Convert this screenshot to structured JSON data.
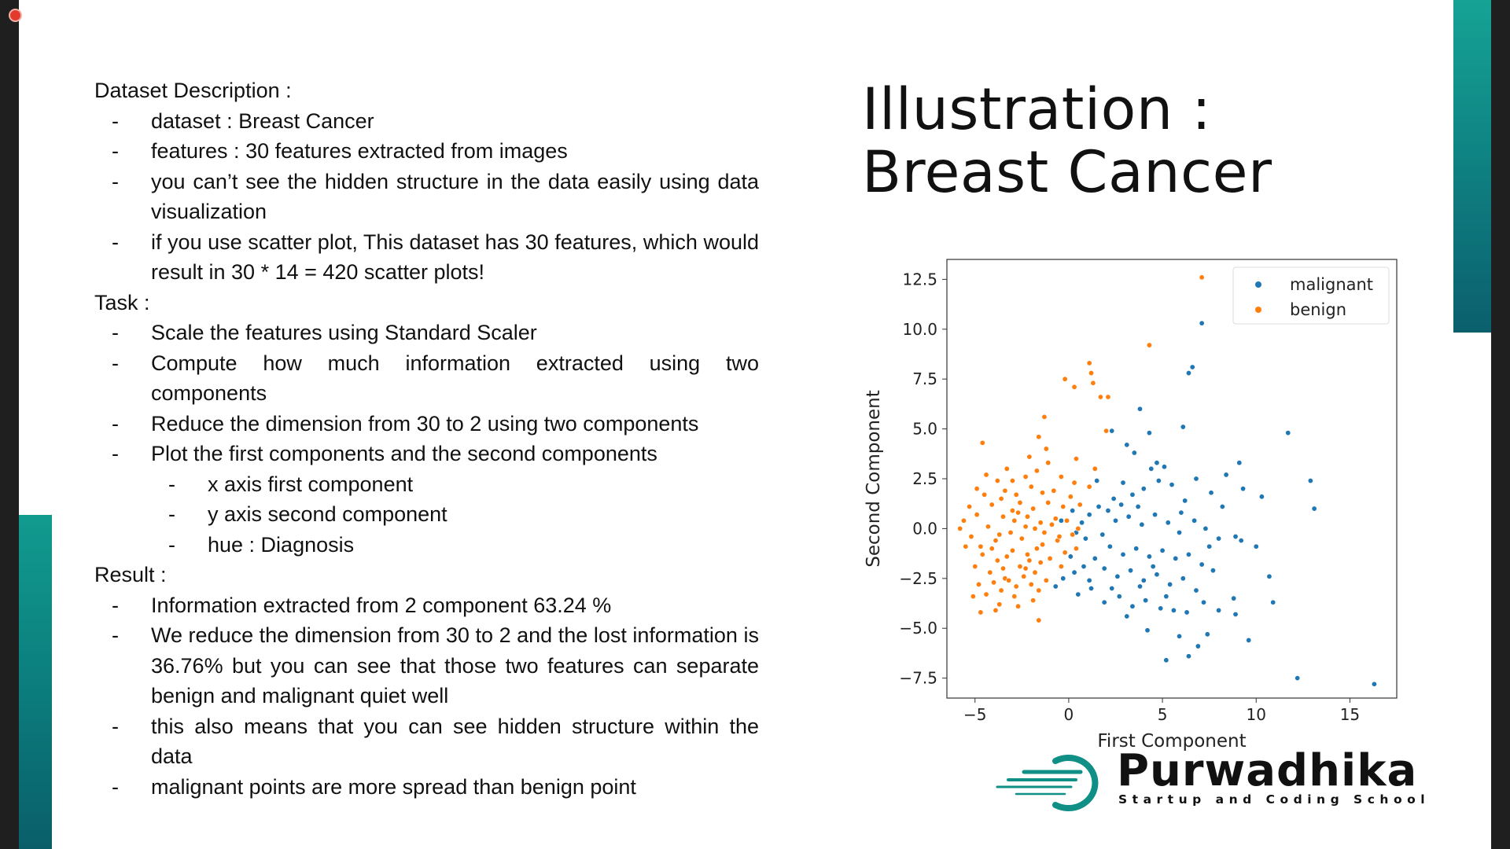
{
  "description": {
    "heading": "Dataset Description :",
    "items": [
      "dataset : Breast Cancer",
      "features : 30 features extracted from images",
      "you can’t see the hidden structure in the data easily using data visualization",
      "if you use scatter plot,  This dataset has 30 features, which would result in 30 * 14 = 420 scatter plots!"
    ]
  },
  "task": {
    "heading": "Task :",
    "items": [
      "Scale the features using Standard Scaler",
      "Compute how much information extracted using two components",
      "Reduce the dimension from 30 to 2 using two components",
      "Plot the first components and the second components"
    ],
    "subitems": [
      "x axis first component",
      "y axis second component",
      "hue : Diagnosis"
    ]
  },
  "result": {
    "heading": "Result :",
    "items": [
      "Information extracted from 2 component 63.24 %",
      "We reduce the dimension from 30 to 2 and the lost information is 36.76% but you can see that those two features can separate benign and malignant quiet well",
      "this also means that you can see hidden structure within the data",
      "malignant points are more spread than benign point"
    ]
  },
  "dash_symbol": "-",
  "title": {
    "line1": "Illustration :",
    "line2": "Breast Cancer"
  },
  "brand": {
    "name": "Purwadhika",
    "tagline": "Startup and Coding School",
    "color": "#0f8f86"
  },
  "chart_data": {
    "type": "scatter",
    "title": "",
    "xlabel": "First Component",
    "ylabel": "Second Component",
    "xlim": [
      -6.5,
      17.5
    ],
    "ylim": [
      -8.5,
      13.5
    ],
    "xticks": [
      -5,
      0,
      5,
      10,
      15
    ],
    "yticks": [
      -7.5,
      -5.0,
      -2.5,
      0.0,
      2.5,
      5.0,
      7.5,
      10.0,
      12.5
    ],
    "legend_position": "top-right",
    "series": [
      {
        "name": "malignant",
        "color": "#1f77b4",
        "points": [
          [
            7.1,
            12.6
          ],
          [
            7.1,
            10.3
          ],
          [
            6.6,
            8.1
          ],
          [
            6.4,
            7.8
          ],
          [
            3.8,
            6.0
          ],
          [
            11.7,
            4.8
          ],
          [
            6.1,
            5.1
          ],
          [
            4.3,
            4.8
          ],
          [
            2.3,
            4.9
          ],
          [
            3.1,
            4.2
          ],
          [
            3.5,
            3.8
          ],
          [
            8.4,
            2.7
          ],
          [
            9.1,
            3.3
          ],
          [
            9.3,
            2.0
          ],
          [
            10.3,
            1.6
          ],
          [
            12.9,
            2.4
          ],
          [
            13.1,
            1.0
          ],
          [
            4.7,
            3.3
          ],
          [
            5.1,
            3.1
          ],
          [
            4.4,
            3.0
          ],
          [
            4.8,
            2.4
          ],
          [
            5.5,
            2.2
          ],
          [
            6.2,
            1.4
          ],
          [
            6.8,
            2.5
          ],
          [
            7.6,
            1.8
          ],
          [
            8.2,
            1.1
          ],
          [
            4.0,
            2.0
          ],
          [
            3.4,
            1.7
          ],
          [
            2.9,
            2.3
          ],
          [
            2.4,
            1.5
          ],
          [
            2.1,
            0.9
          ],
          [
            1.6,
            1.1
          ],
          [
            1.1,
            0.7
          ],
          [
            0.7,
            0.3
          ],
          [
            0.4,
            -0.2
          ],
          [
            0.9,
            -0.5
          ],
          [
            1.8,
            -0.3
          ],
          [
            2.5,
            0.4
          ],
          [
            3.2,
            0.6
          ],
          [
            3.9,
            0.2
          ],
          [
            4.6,
            0.7
          ],
          [
            5.3,
            0.3
          ],
          [
            6.0,
            0.8
          ],
          [
            6.7,
            0.4
          ],
          [
            7.3,
            0.0
          ],
          [
            8.0,
            -0.5
          ],
          [
            8.9,
            -0.4
          ],
          [
            9.2,
            -0.6
          ],
          [
            10.0,
            -0.9
          ],
          [
            2.2,
            -0.9
          ],
          [
            2.9,
            -1.3
          ],
          [
            3.6,
            -1.0
          ],
          [
            4.3,
            -1.4
          ],
          [
            5.0,
            -1.1
          ],
          [
            5.7,
            -1.5
          ],
          [
            6.4,
            -1.3
          ],
          [
            7.1,
            -1.8
          ],
          [
            7.7,
            -2.1
          ],
          [
            1.4,
            -1.5
          ],
          [
            0.8,
            -1.9
          ],
          [
            0.3,
            -2.2
          ],
          [
            -0.3,
            -2.5
          ],
          [
            -0.7,
            -2.9
          ],
          [
            1.9,
            -2.0
          ],
          [
            2.6,
            -2.4
          ],
          [
            3.3,
            -2.1
          ],
          [
            4.0,
            -2.6
          ],
          [
            4.7,
            -2.3
          ],
          [
            5.4,
            -2.8
          ],
          [
            6.1,
            -2.5
          ],
          [
            0.5,
            -3.3
          ],
          [
            1.2,
            -3.0
          ],
          [
            1.9,
            -3.7
          ],
          [
            2.7,
            -3.4
          ],
          [
            3.4,
            -3.9
          ],
          [
            4.1,
            -3.6
          ],
          [
            4.9,
            -4.0
          ],
          [
            5.6,
            -4.1
          ],
          [
            6.3,
            -4.2
          ],
          [
            7.2,
            -3.7
          ],
          [
            8.0,
            -4.1
          ],
          [
            8.9,
            -4.3
          ],
          [
            10.7,
            -2.4
          ],
          [
            10.9,
            -3.7
          ],
          [
            3.1,
            -4.4
          ],
          [
            4.2,
            -5.1
          ],
          [
            5.9,
            -5.4
          ],
          [
            6.9,
            -5.9
          ],
          [
            7.4,
            -5.3
          ],
          [
            8.8,
            -3.5
          ],
          [
            9.6,
            -5.6
          ],
          [
            5.2,
            -6.6
          ],
          [
            6.4,
            -6.4
          ],
          [
            12.2,
            -7.5
          ],
          [
            16.3,
            -7.8
          ],
          [
            0.2,
            0.9
          ],
          [
            -0.4,
            0.4
          ],
          [
            1.5,
            2.4
          ],
          [
            2.8,
            1.2
          ],
          [
            3.7,
            1.1
          ],
          [
            5.9,
            -0.2
          ],
          [
            0.1,
            -1.4
          ],
          [
            1.1,
            -2.6
          ],
          [
            7.5,
            -0.9
          ],
          [
            6.8,
            -3.1
          ],
          [
            2.3,
            -3.0
          ],
          [
            3.8,
            -2.9
          ],
          [
            4.5,
            -1.9
          ],
          [
            5.2,
            -3.4
          ]
        ]
      },
      {
        "name": "benign",
        "color": "#ff7f0e",
        "points": [
          [
            7.1,
            12.6
          ],
          [
            4.3,
            9.2
          ],
          [
            1.1,
            8.3
          ],
          [
            1.2,
            7.8
          ],
          [
            1.3,
            7.3
          ],
          [
            -0.2,
            7.5
          ],
          [
            0.3,
            7.1
          ],
          [
            1.7,
            6.6
          ],
          [
            2.1,
            6.6
          ],
          [
            2.0,
            4.9
          ],
          [
            -1.3,
            5.6
          ],
          [
            -1.6,
            4.6
          ],
          [
            -4.6,
            4.3
          ],
          [
            -1.2,
            4.0
          ],
          [
            -2.1,
            3.6
          ],
          [
            -3.3,
            3.0
          ],
          [
            0.4,
            3.5
          ],
          [
            1.4,
            3.0
          ],
          [
            -4.9,
            2.0
          ],
          [
            -5.3,
            1.1
          ],
          [
            -4.5,
            1.7
          ],
          [
            -4.1,
            1.2
          ],
          [
            -3.6,
            1.5
          ],
          [
            -3.0,
            2.4
          ],
          [
            -2.3,
            2.6
          ],
          [
            -1.7,
            2.9
          ],
          [
            -1.1,
            3.3
          ],
          [
            -0.4,
            2.6
          ],
          [
            0.3,
            2.3
          ],
          [
            1.1,
            2.1
          ],
          [
            -5.6,
            0.4
          ],
          [
            -5.2,
            -0.4
          ],
          [
            -4.7,
            -0.9
          ],
          [
            -4.3,
            0.1
          ],
          [
            -3.9,
            -0.6
          ],
          [
            -3.5,
            0.6
          ],
          [
            -3.1,
            -0.2
          ],
          [
            -2.7,
            0.8
          ],
          [
            -2.3,
            0.1
          ],
          [
            -1.9,
            1.0
          ],
          [
            -1.5,
            0.3
          ],
          [
            -1.1,
            1.3
          ],
          [
            -0.7,
            0.5
          ],
          [
            -0.3,
            1.1
          ],
          [
            0.1,
            1.6
          ],
          [
            0.6,
            1.2
          ],
          [
            -5.0,
            -1.9
          ],
          [
            -4.6,
            -1.3
          ],
          [
            -4.2,
            -2.2
          ],
          [
            -3.8,
            -1.6
          ],
          [
            -3.4,
            -2.5
          ],
          [
            -3.0,
            -1.1
          ],
          [
            -2.6,
            -1.9
          ],
          [
            -2.2,
            -1.3
          ],
          [
            -1.8,
            -2.2
          ],
          [
            -1.4,
            -0.8
          ],
          [
            -1.0,
            -1.5
          ],
          [
            -0.6,
            -0.6
          ],
          [
            -0.2,
            -1.2
          ],
          [
            0.2,
            -0.3
          ],
          [
            -4.8,
            -2.8
          ],
          [
            -4.4,
            -3.3
          ],
          [
            -4.0,
            -2.7
          ],
          [
            -3.6,
            -3.1
          ],
          [
            -3.2,
            -2.6
          ],
          [
            -2.8,
            -2.9
          ],
          [
            -2.4,
            -2.4
          ],
          [
            -2.0,
            -2.8
          ],
          [
            -1.6,
            -3.1
          ],
          [
            -1.2,
            -2.6
          ],
          [
            -5.1,
            -3.4
          ],
          [
            -3.7,
            -3.8
          ],
          [
            -2.9,
            -3.4
          ],
          [
            -1.9,
            -3.6
          ],
          [
            -1.6,
            -4.6
          ],
          [
            -2.1,
            -1.6
          ],
          [
            -1.7,
            -1.0
          ],
          [
            -2.5,
            -0.5
          ],
          [
            -2.9,
            0.4
          ],
          [
            -3.3,
            -1.4
          ],
          [
            -3.7,
            -0.3
          ],
          [
            -4.1,
            -1.0
          ],
          [
            -1.3,
            -0.2
          ],
          [
            -0.9,
            0.2
          ],
          [
            -0.5,
            -0.4
          ],
          [
            -2.2,
            0.6
          ],
          [
            -1.8,
            0.0
          ],
          [
            -2.6,
            1.3
          ],
          [
            -3.0,
            0.9
          ],
          [
            -1.4,
            1.8
          ],
          [
            -2.0,
            2.1
          ],
          [
            -2.8,
            1.7
          ],
          [
            -3.4,
            1.9
          ],
          [
            -0.8,
            1.9
          ],
          [
            -0.1,
            0.4
          ],
          [
            0.5,
            0.0
          ],
          [
            -3.8,
            2.4
          ],
          [
            -4.4,
            2.7
          ],
          [
            -5.5,
            -0.9
          ],
          [
            -5.8,
            0.0
          ],
          [
            -4.9,
            0.7
          ],
          [
            -3.5,
            -2.0
          ],
          [
            -2.3,
            -2.0
          ],
          [
            -1.5,
            -1.7
          ],
          [
            -0.4,
            -1.9
          ],
          [
            0.4,
            -1.0
          ],
          [
            -2.7,
            -3.9
          ],
          [
            -3.9,
            -4.1
          ],
          [
            -4.7,
            -4.2
          ]
        ]
      }
    ]
  }
}
